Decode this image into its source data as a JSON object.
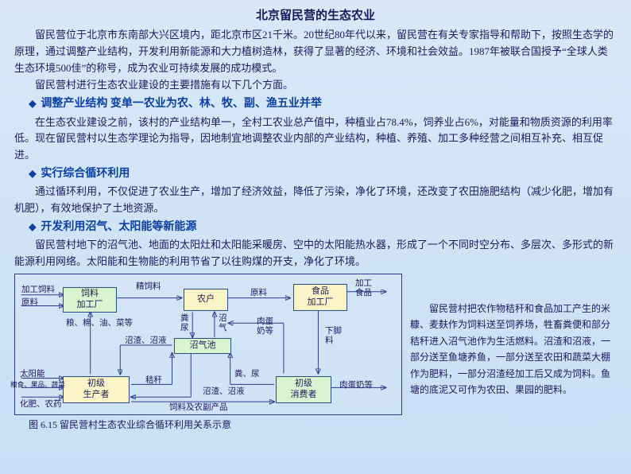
{
  "title": "北京留民营的生态农业",
  "intro": [
    "留民营位于北京市东南部大兴区境内，距北京市区21千米。20世纪80年代以来，留民营在有关专家指导和帮助下，按照生态学的原理，通过调整产业结构，开发利用新能源和大力植树造林，获得了显著的经济、环境和社会效益。1987年被联合国授予“全球人类生态环境500佳”的称号，成为农业可持续发展的成功模式。",
    "留民营村进行生态农业建设的主要措施有以下几个方面。"
  ],
  "sections": [
    {
      "head": "调整产业结构  变单一农业为农、林、牧、副、渔五业并举",
      "body": "在生态农业建设之前，该村的产业结构单一，全村工农业总产值中，种植业占78.4%，饲养业占6%，对能量和物质资源的利用率低。现在留民营村以生态学理论为指导，因地制宜地调整农业内部的产业结构，种植、养殖、加工多种经营之间相互补充、相互促进。"
    },
    {
      "head": "实行综合循环利用",
      "body": "通过循环利用，不仅促进了农业生产，增加了经济效益，降低了污染，净化了环境，还改变了农田施肥结构（减少化肥，增加有机肥），有效地保护了土地资源。"
    },
    {
      "head": "开发利用沼气、太阳能等新能源",
      "body": "留民营村地下的沼气池、地面的太阳灶和太阳能采暖房、空中的太阳能热水器，形成了一个不同时空分布、多层次、多形式的新能源利用网络。太阳能和生物能的利用节省了以往购煤的开支，净化了环境。"
    }
  ],
  "diagram": {
    "nodes": {
      "feed_factory": "饲料\n加工厂",
      "household": "农户",
      "food_factory": "食品\n加工厂",
      "biogas": "沼气池",
      "producer": "初级\n生产者",
      "consumer": "初级\n消费者"
    },
    "labels": {
      "refined_feed": "精饲料",
      "raw1": "原料",
      "raw2": "原料",
      "processed_food": "加工\n食品",
      "proc_feed": "加工饲料",
      "grain_etc": "粮、棉、油、菜等",
      "manure1": "粪\n尿",
      "biogas_gas": "沼\n气",
      "egg_milk": "肉蛋\n奶等",
      "leftover": "下脚\n料",
      "residue": "沼渣、沼液",
      "straw": "秸秆",
      "manure2": "粪、尿",
      "residue2": "沼渣、沼液",
      "sun": "太阳能",
      "input_left": "粮食、果品、蔬菜",
      "fert": "化肥、农药",
      "feed_byproduct": "饲料及农副产品",
      "meat_out": "肉蛋奶等"
    },
    "caption": "图 6.15  留民营村生态农业综合循环利用关系示意"
  },
  "sidenote": "留民营村把农作物秸秆和食品加工产生的米糠、麦麸作为饲料送至饲养场，牲畜粪便和部分秸秆进入沼气池作为生活燃料。沼渣和沼液，一部分送至鱼塘养鱼，一部分送至农田和蔬菜大棚作为肥料，一部分沼渣经加工后又成为饲料。鱼塘的底泥又可作为农田、果园的肥料。"
}
